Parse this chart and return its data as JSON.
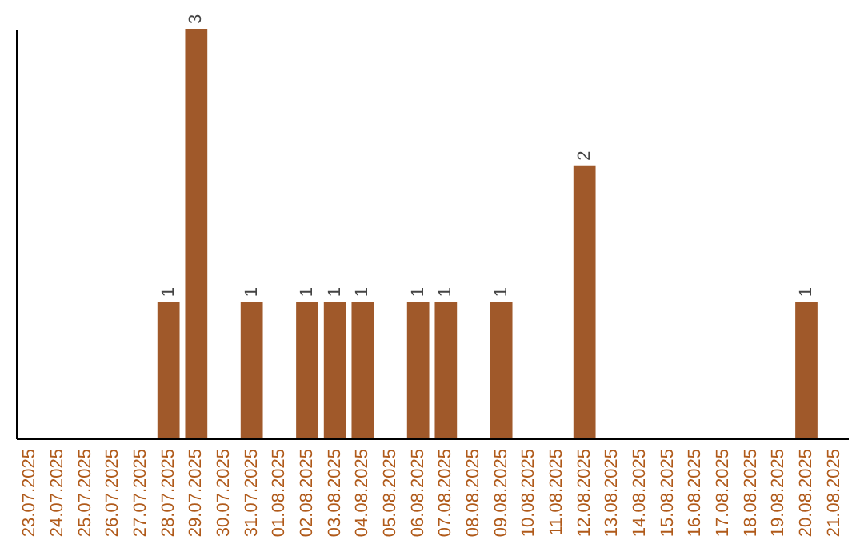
{
  "chart_data": {
    "type": "bar",
    "categories": [
      "23.07.2025",
      "24.07.2025",
      "25.07.2025",
      "26.07.2025",
      "27.07.2025",
      "28.07.2025",
      "29.07.2025",
      "30.07.2025",
      "31.07.2025",
      "01.08.2025",
      "02.08.2025",
      "03.08.2025",
      "04.08.2025",
      "05.08.2025",
      "06.08.2025",
      "07.08.2025",
      "08.08.2025",
      "09.08.2025",
      "10.08.2025",
      "11.08.2025",
      "12.08.2025",
      "13.08.2025",
      "14.08.2025",
      "15.08.2025",
      "16.08.2025",
      "17.08.2025",
      "18.08.2025",
      "19.08.2025",
      "20.08.2025",
      "21.08.2025"
    ],
    "values": [
      0,
      0,
      0,
      0,
      0,
      1,
      3,
      0,
      1,
      0,
      1,
      1,
      1,
      0,
      1,
      1,
      0,
      1,
      0,
      0,
      2,
      0,
      0,
      0,
      0,
      0,
      0,
      0,
      1,
      0
    ],
    "value_labels": [
      null,
      null,
      null,
      null,
      null,
      "1",
      "3",
      null,
      "1",
      null,
      "1",
      "1",
      "1",
      null,
      "1",
      "1",
      null,
      "1",
      null,
      null,
      "2",
      null,
      null,
      null,
      null,
      null,
      null,
      null,
      "1",
      null
    ],
    "color": "#a0592a",
    "tick_labels": "x"
  }
}
